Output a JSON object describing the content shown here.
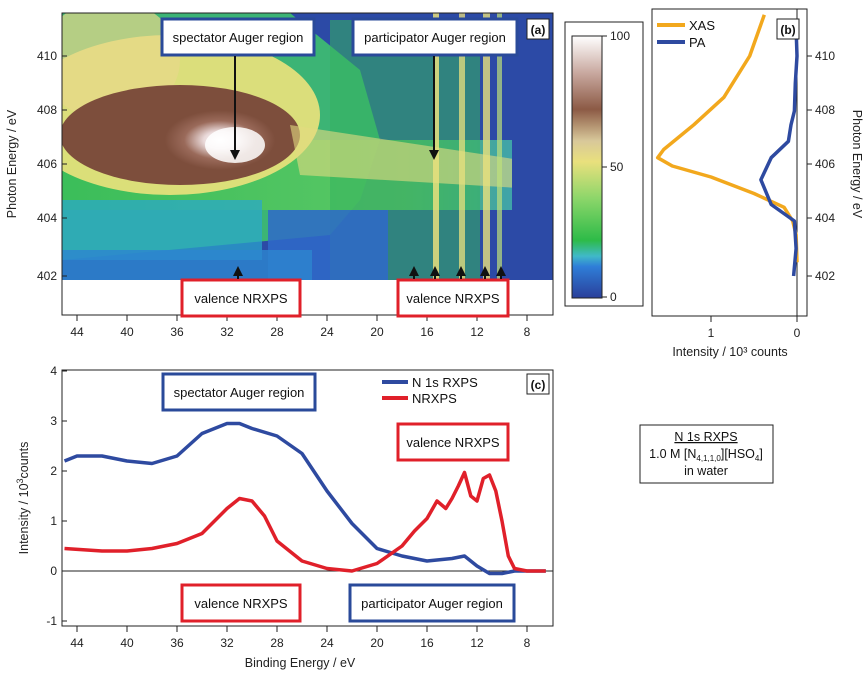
{
  "colors": {
    "blue_box": "#2a4a9a",
    "red_box": "#e0202a",
    "xas": "#f2a81d",
    "pa": "#2e4aa0",
    "rxps": "#2e4aa0",
    "nrxps": "#e0202a"
  },
  "panel_a": {
    "letter": "(a)",
    "ylabel": "Photon Energy / eV",
    "x_ticks": [
      "44",
      "40",
      "36",
      "32",
      "28",
      "24",
      "20",
      "16",
      "12",
      "8"
    ],
    "y_ticks": [
      "402",
      "404",
      "406",
      "408",
      "410"
    ],
    "labels": {
      "spectator": "spectator Auger region",
      "participator": "participator Auger region",
      "valence_left": "valence NRXPS",
      "valence_right": "valence NRXPS"
    },
    "colorbar_ticks": [
      "0",
      "50",
      "100"
    ]
  },
  "panel_b": {
    "letter": "(b)",
    "ylabel": "Photon Energy / eV",
    "xlabel": "Intensity / 10³ counts",
    "x_ticks": [
      "1",
      "0"
    ],
    "y_ticks": [
      "402",
      "404",
      "406",
      "408",
      "410"
    ],
    "legend": [
      "XAS",
      "PA"
    ]
  },
  "panel_c": {
    "letter": "(c)",
    "xlabel": "Binding Energy / eV",
    "ylabel_main": "Intensity / 10",
    "ylabel_sup": "3",
    "ylabel_tail": "counts",
    "x_ticks": [
      "44",
      "40",
      "36",
      "32",
      "28",
      "24",
      "20",
      "16",
      "12",
      "8"
    ],
    "y_ticks": [
      "-1",
      "0",
      "1",
      "2",
      "3",
      "4"
    ],
    "legend": [
      "N 1s RXPS",
      "NRXPS"
    ],
    "labels": {
      "spectator": "spectator Auger region",
      "valence_top": "valence NRXPS",
      "valence_bottom": "valence NRXPS",
      "participator": "participator Auger region"
    }
  },
  "info_box": {
    "line1": "N 1s RXPS",
    "line2_main": "1.0 M [N",
    "line2_sub": "4,1,1,0",
    "line2_tail": "][HSO",
    "line2_sub2": "4",
    "line2_end": "]",
    "line3": "in water"
  },
  "chart_data": [
    {
      "type": "heatmap",
      "panel": "(a)",
      "xlabel": "",
      "ylabel": "Photon Energy / eV",
      "xlim": [
        45,
        6
      ],
      "ylim": [
        402,
        411.5
      ],
      "colorbar_range": [
        0,
        100
      ],
      "features": [
        {
          "name": "spectator Auger maximum",
          "x": 31,
          "y": 406.2,
          "value": 100
        },
        {
          "name": "participator lines",
          "x": [
            15.5,
            13,
            11,
            10
          ],
          "y_range": [
            402,
            411
          ]
        }
      ]
    },
    {
      "type": "line",
      "panel": "(b)",
      "xlabel": "Intensity / 10³ counts",
      "ylabel": "Photon Energy / eV",
      "xlim": [
        1.75,
        -0.05
      ],
      "ylim": [
        400.8,
        411.5
      ],
      "series": [
        {
          "name": "XAS",
          "x": [
            0.0,
            0.01,
            0.05,
            0.15,
            0.5,
            1.0,
            1.45,
            1.62,
            1.55,
            1.2,
            0.85,
            0.55,
            0.38
          ],
          "y": [
            402.5,
            403.5,
            404.0,
            404.5,
            405.0,
            405.6,
            406.0,
            406.3,
            406.6,
            407.5,
            408.5,
            410.0,
            411.5
          ]
        },
        {
          "name": "PA",
          "x": [
            0.04,
            0.01,
            0.03,
            0.3,
            0.42,
            0.3,
            0.1,
            0.07,
            0.03,
            0.02,
            0.0,
            0.01
          ],
          "y": [
            402.0,
            403.0,
            404.0,
            404.6,
            405.5,
            406.3,
            406.9,
            407.5,
            408.0,
            409.0,
            410.0,
            411.0
          ]
        }
      ]
    },
    {
      "type": "line",
      "panel": "(c)",
      "xlabel": "Binding Energy / eV",
      "ylabel": "Intensity / 10³ counts",
      "xlim": [
        45.5,
        6
      ],
      "ylim": [
        -1.1,
        4.1
      ],
      "series": [
        {
          "name": "N 1s RXPS",
          "x": [
            45,
            44,
            42,
            40,
            38,
            36,
            34,
            32,
            31,
            30,
            28,
            26,
            24,
            22,
            20,
            18,
            16,
            14,
            13,
            12,
            11,
            10,
            9,
            8,
            6.5
          ],
          "y": [
            2.2,
            2.3,
            2.3,
            2.2,
            2.15,
            2.3,
            2.75,
            2.95,
            2.95,
            2.85,
            2.7,
            2.35,
            1.6,
            0.95,
            0.45,
            0.3,
            0.2,
            0.25,
            0.3,
            0.1,
            -0.05,
            -0.05,
            0.0,
            0.0,
            0.0
          ]
        },
        {
          "name": "NRXPS",
          "x": [
            45,
            42,
            40,
            38,
            36,
            34,
            32,
            31,
            30,
            29,
            28,
            26,
            24,
            22,
            20,
            18,
            17,
            16,
            15.2,
            14.5,
            14,
            13.5,
            13,
            12.5,
            12,
            11.5,
            11,
            10.5,
            10,
            9.5,
            9,
            8,
            6.5
          ],
          "y": [
            0.45,
            0.4,
            0.4,
            0.45,
            0.55,
            0.75,
            1.25,
            1.45,
            1.4,
            1.1,
            0.6,
            0.2,
            0.05,
            0.0,
            0.15,
            0.5,
            0.8,
            1.05,
            1.4,
            1.25,
            1.45,
            1.7,
            1.97,
            1.5,
            1.4,
            1.85,
            1.92,
            1.6,
            1.0,
            0.3,
            0.05,
            0.0,
            0.0
          ]
        }
      ]
    }
  ]
}
